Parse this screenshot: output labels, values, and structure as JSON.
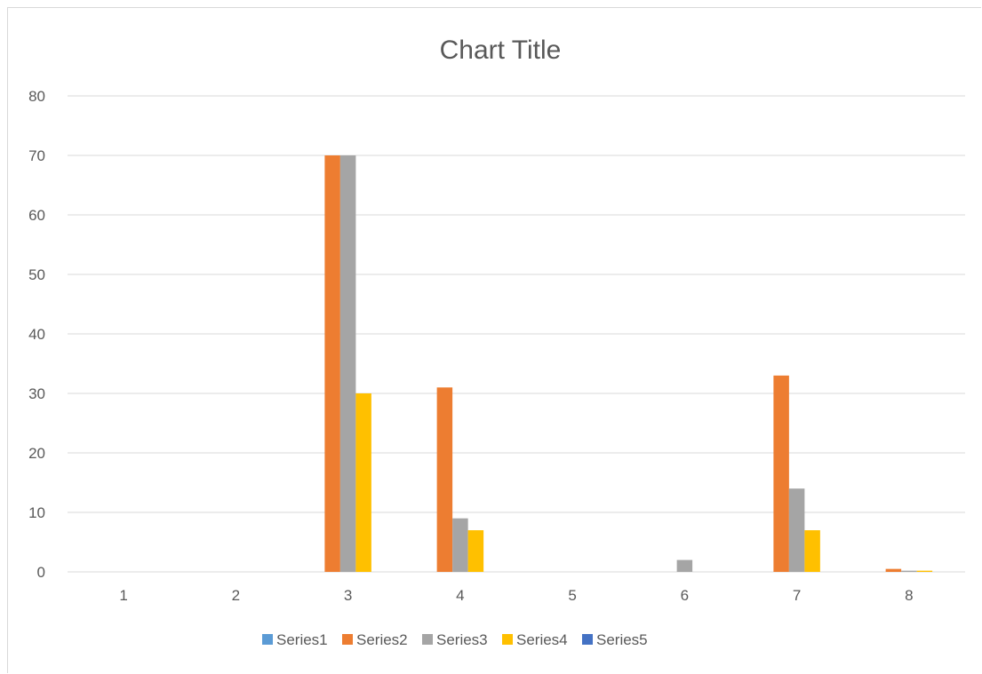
{
  "chart_data": {
    "type": "bar",
    "title": "Chart Title",
    "xlabel": "",
    "ylabel": "",
    "categories": [
      "1",
      "2",
      "3",
      "4",
      "5",
      "6",
      "7",
      "8"
    ],
    "ylim": [
      0,
      80
    ],
    "yticks": [
      0,
      10,
      20,
      30,
      40,
      50,
      60,
      70,
      80
    ],
    "grid": true,
    "legend_position": "bottom",
    "series": [
      {
        "name": "Series1",
        "color": "#5b9bd5",
        "values": [
          0,
          0,
          0,
          0,
          0,
          0,
          0,
          0
        ]
      },
      {
        "name": "Series2",
        "color": "#ed7d31",
        "values": [
          0,
          0,
          70,
          31,
          0,
          0,
          33,
          0.5
        ]
      },
      {
        "name": "Series3",
        "color": "#a5a5a5",
        "values": [
          0,
          0,
          70,
          9,
          0,
          2,
          14,
          0.2
        ]
      },
      {
        "name": "Series4",
        "color": "#ffc000",
        "values": [
          0,
          0,
          30,
          7,
          0,
          0,
          7,
          0.2
        ]
      },
      {
        "name": "Series5",
        "color": "#4472c4",
        "values": [
          0,
          0,
          0,
          0,
          0,
          0,
          0,
          0
        ]
      }
    ]
  }
}
